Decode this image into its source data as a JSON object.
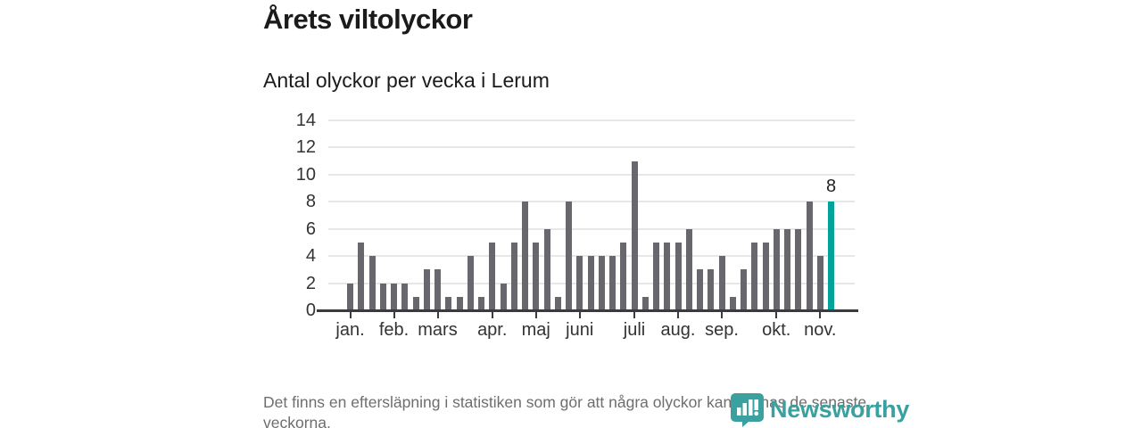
{
  "header": {
    "title": "Årets viltolyckor",
    "subtitle": "Antal olyckor per vecka i Lerum"
  },
  "chart_data": {
    "type": "bar",
    "title": "Årets viltolyckor",
    "subtitle": "Antal olyckor per vecka i Lerum",
    "ylabel": "Antal olyckor per vecka",
    "ylim": [
      0,
      14
    ],
    "y_ticks": [
      0,
      2,
      4,
      6,
      8,
      10,
      12,
      14
    ],
    "grid": "horizontal",
    "values": [
      2,
      5,
      4,
      2,
      2,
      2,
      1,
      3,
      3,
      1,
      1,
      4,
      1,
      5,
      2,
      5,
      8,
      5,
      6,
      1,
      8,
      4,
      4,
      4,
      4,
      5,
      11,
      1,
      5,
      5,
      5,
      6,
      3,
      3,
      4,
      1,
      3,
      5,
      5,
      6,
      6,
      6,
      8,
      4,
      8
    ],
    "highlight_last_bar": true,
    "last_value_label": "8",
    "month_ticks": [
      {
        "label": "jan.",
        "bar_index": 0
      },
      {
        "label": "feb.",
        "bar_index": 4
      },
      {
        "label": "mars",
        "bar_index": 8
      },
      {
        "label": "apr.",
        "bar_index": 13
      },
      {
        "label": "maj",
        "bar_index": 17
      },
      {
        "label": "juni",
        "bar_index": 21
      },
      {
        "label": "juli",
        "bar_index": 26
      },
      {
        "label": "aug.",
        "bar_index": 30
      },
      {
        "label": "sep.",
        "bar_index": 34
      },
      {
        "label": "okt.",
        "bar_index": 39
      },
      {
        "label": "nov.",
        "bar_index": 43
      }
    ],
    "colors": {
      "bar": "#67676d",
      "highlight": "#00a39a",
      "gridline": "#e7e7e7",
      "axis": "#3a3a40"
    }
  },
  "footer": {
    "note": "Det finns en eftersläpning i statistiken som gör att några olyckor kan saknas de senaste veckorna.",
    "brand": "Newsworthy",
    "brand_color": "#3ba0a0"
  }
}
